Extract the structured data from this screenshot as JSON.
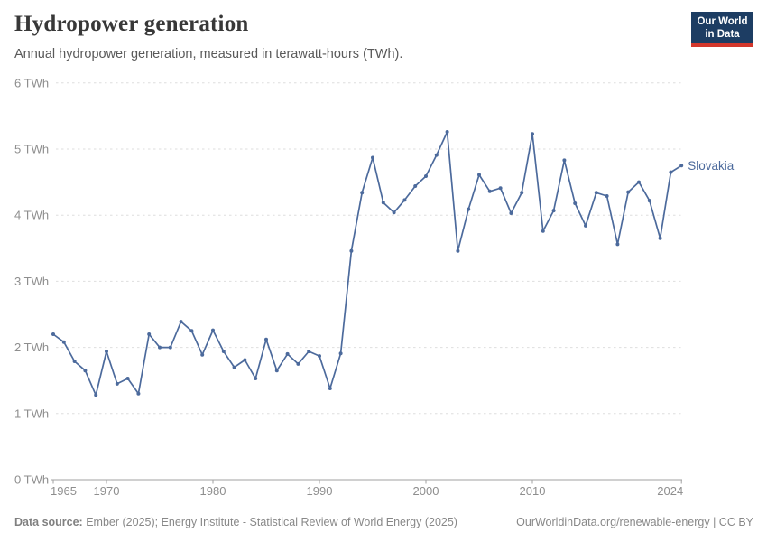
{
  "header": {
    "title": "Hydropower generation",
    "subtitle": "Annual hydropower generation, measured in terawatt-hours (TWh)."
  },
  "logo": {
    "line1": "Our World",
    "line2": "in Data",
    "bg_color": "#1d3d63",
    "accent_color": "#d3372c"
  },
  "chart_data": {
    "type": "line",
    "title": "Hydropower generation",
    "ylabel": "",
    "xlabel": "",
    "unit": "TWh",
    "grid": "dashed-horizontal",
    "legend_position": "end-of-line",
    "ylim": [
      0,
      6
    ],
    "yticks": [
      0,
      1,
      2,
      3,
      4,
      5,
      6
    ],
    "ytick_format": "{v} TWh",
    "xticks": [
      1965,
      1970,
      1980,
      1990,
      2000,
      2010,
      2024
    ],
    "x": [
      1965,
      1966,
      1967,
      1968,
      1969,
      1970,
      1971,
      1972,
      1973,
      1974,
      1975,
      1976,
      1977,
      1978,
      1979,
      1980,
      1981,
      1982,
      1983,
      1984,
      1985,
      1986,
      1987,
      1988,
      1989,
      1990,
      1991,
      1992,
      1993,
      1994,
      1995,
      1996,
      1997,
      1998,
      1999,
      2000,
      2001,
      2002,
      2003,
      2004,
      2005,
      2006,
      2007,
      2008,
      2009,
      2010,
      2011,
      2012,
      2013,
      2014,
      2015,
      2016,
      2017,
      2018,
      2019,
      2020,
      2021,
      2022,
      2023,
      2024
    ],
    "series": [
      {
        "name": "Slovakia",
        "color": "#4C6A9C",
        "values": [
          2.2,
          2.08,
          1.79,
          1.65,
          1.28,
          1.94,
          1.45,
          1.53,
          1.3,
          2.2,
          2.0,
          2.0,
          2.39,
          2.25,
          1.89,
          2.26,
          1.94,
          1.7,
          1.81,
          1.53,
          2.12,
          1.65,
          1.9,
          1.75,
          1.94,
          1.87,
          1.38,
          1.91,
          3.46,
          4.34,
          4.87,
          4.19,
          4.04,
          4.23,
          4.44,
          4.59,
          4.91,
          5.26,
          3.46,
          4.09,
          4.61,
          4.36,
          4.41,
          4.03,
          4.34,
          5.23,
          3.76,
          4.07,
          4.83,
          4.18,
          3.84,
          4.34,
          4.29,
          3.56,
          4.35,
          4.5,
          4.22,
          3.65,
          4.65,
          4.75
        ]
      }
    ],
    "style": {
      "grid_color": "#dedede",
      "axis_color": "#a1a1a1",
      "tick_label_color": "#8e8e8e"
    }
  },
  "footer": {
    "source_label": "Data source:",
    "source_text": " Ember (2025); Energy Institute - Statistical Review of World Energy (2025)",
    "right_text": "OurWorldinData.org/renewable-energy | CC BY"
  }
}
